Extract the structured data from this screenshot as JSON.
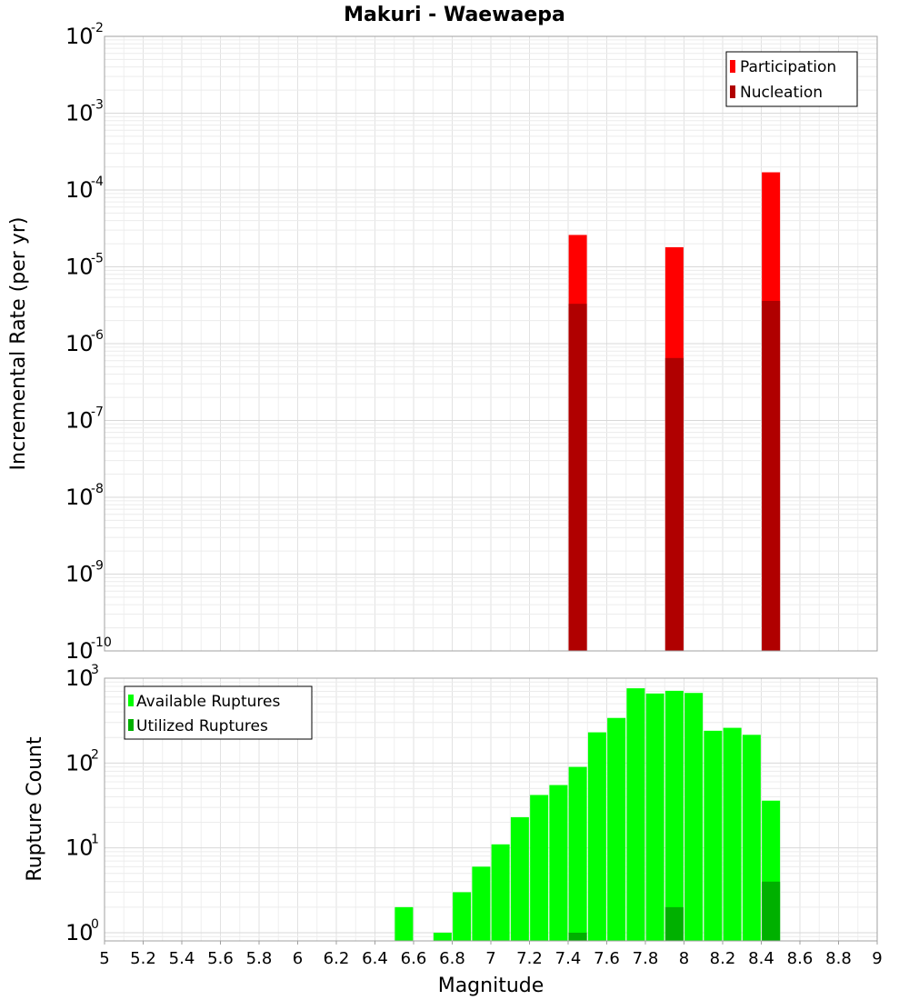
{
  "chart_data": [
    {
      "type": "bar",
      "title": "Makuri - Waewaepa",
      "ylabel": "Incremental Rate (per yr)",
      "xlabel": "",
      "yscale": "log",
      "ylim": [
        1e-10,
        0.01
      ],
      "xlim": [
        5,
        9
      ],
      "legend_position": "top-right",
      "grid": true,
      "series": [
        {
          "name": "Participation",
          "color": "#ff0000",
          "points": [
            {
              "x": 7.45,
              "y": 2.6e-05
            },
            {
              "x": 7.95,
              "y": 1.8e-05
            },
            {
              "x": 8.45,
              "y": 0.00017
            }
          ]
        },
        {
          "name": "Nucleation",
          "color": "#b00000",
          "points": [
            {
              "x": 7.45,
              "y": 3.3e-06
            },
            {
              "x": 7.95,
              "y": 6.5e-07
            },
            {
              "x": 8.45,
              "y": 3.6e-06
            }
          ]
        }
      ]
    },
    {
      "type": "bar",
      "title": "",
      "ylabel": "Rupture Count",
      "xlabel": "Magnitude",
      "yscale": "log",
      "ylim": [
        0.8,
        1000
      ],
      "xlim": [
        5,
        9
      ],
      "legend_position": "top-left",
      "grid": true,
      "x_ticks": [
        "5",
        "5.2",
        "5.4",
        "5.6",
        "5.8",
        "6",
        "6.2",
        "6.4",
        "6.6",
        "6.8",
        "7",
        "7.2",
        "7.4",
        "7.6",
        "7.8",
        "8",
        "8.2",
        "8.4",
        "8.6",
        "8.8",
        "9"
      ],
      "series": [
        {
          "name": "Available Ruptures",
          "color": "#00ff00",
          "points": [
            {
              "x": 6.55,
              "y": 2
            },
            {
              "x": 6.75,
              "y": 1
            },
            {
              "x": 6.85,
              "y": 3
            },
            {
              "x": 6.95,
              "y": 6
            },
            {
              "x": 7.05,
              "y": 11
            },
            {
              "x": 7.15,
              "y": 23
            },
            {
              "x": 7.25,
              "y": 42
            },
            {
              "x": 7.35,
              "y": 55
            },
            {
              "x": 7.45,
              "y": 90
            },
            {
              "x": 7.55,
              "y": 230
            },
            {
              "x": 7.65,
              "y": 340
            },
            {
              "x": 7.75,
              "y": 760
            },
            {
              "x": 7.85,
              "y": 660
            },
            {
              "x": 7.95,
              "y": 710
            },
            {
              "x": 8.05,
              "y": 670
            },
            {
              "x": 8.15,
              "y": 240
            },
            {
              "x": 8.25,
              "y": 260
            },
            {
              "x": 8.35,
              "y": 215
            },
            {
              "x": 8.45,
              "y": 36
            }
          ]
        },
        {
          "name": "Utilized Ruptures",
          "color": "#00b000",
          "points": [
            {
              "x": 7.45,
              "y": 1
            },
            {
              "x": 7.95,
              "y": 2
            },
            {
              "x": 8.45,
              "y": 4
            }
          ]
        }
      ]
    }
  ]
}
